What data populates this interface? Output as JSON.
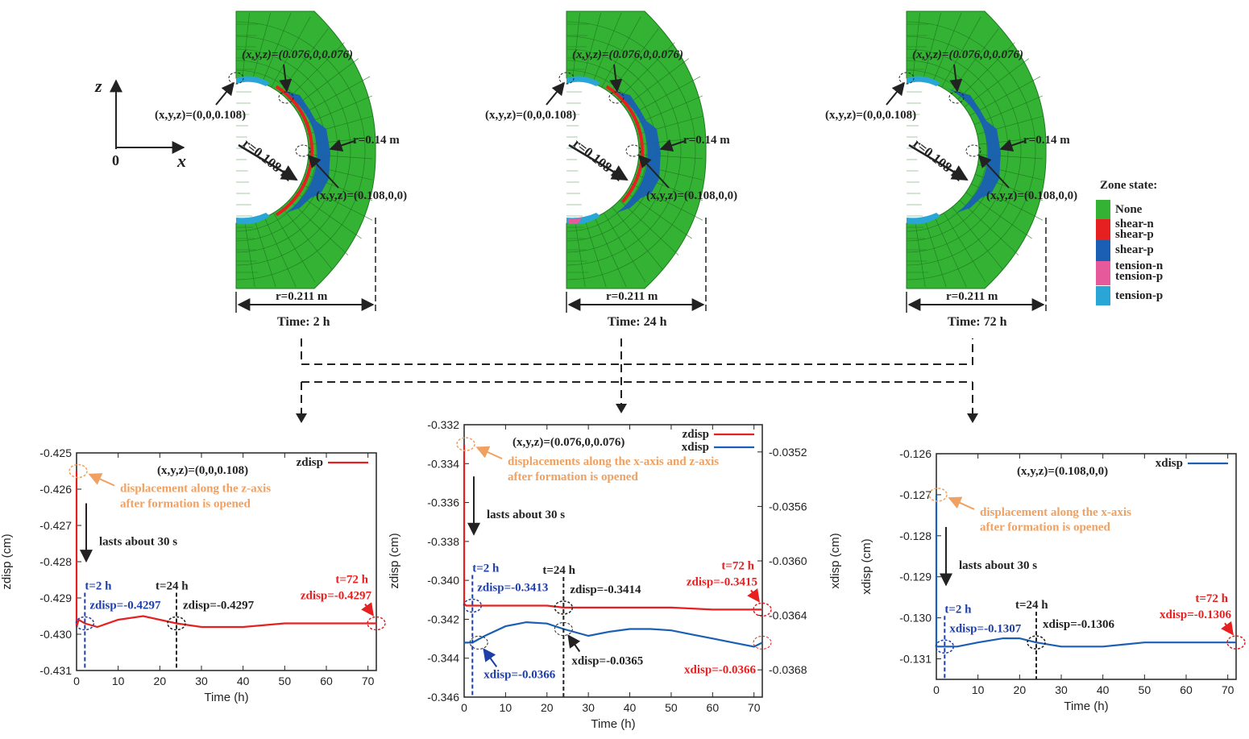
{
  "colors": {
    "green": "#33b233",
    "green_dark": "#1f7a1f",
    "red": "#e62020",
    "blue": "#1a5fb4",
    "light_blue": "#2aa6d6",
    "pink": "#e65a9c",
    "orange": "#f0a060",
    "annotation_blue": "#1f3fa8"
  },
  "axes_icon": {
    "z": "z",
    "x": "x",
    "origin": "0"
  },
  "legend": {
    "title": "Zone state:",
    "items": [
      {
        "label": "None",
        "color": "#33b233"
      },
      {
        "label": "shear-n\nshear-p",
        "color": "#e62020"
      },
      {
        "label": "shear-p",
        "color": "#1a5fb4"
      },
      {
        "label": "tension-n\ntension-p",
        "color": "#e65a9c"
      },
      {
        "label": "tension-p",
        "color": "#2aa6d6"
      }
    ]
  },
  "models": [
    {
      "time_label": "Time: 2 h",
      "p_top": "(x,y,z)=(0.076,0,0.076)",
      "p_left": "(x,y,z)=(0,0,0.108)",
      "p_mid": "(x,y,z)=(0.108,0,0)",
      "r_inner": "r=0.108 m",
      "r_shear": "r=0.14 m",
      "r_outer": "r=0.211 m"
    },
    {
      "time_label": "Time: 24 h",
      "p_top": "(x,y,z)=(0.076,0,0.076)",
      "p_left": "(x,y,z)=(0,0,0.108)",
      "p_mid": "(x,y,z)=(0.108,0,0)",
      "r_inner": "r=0.108 m",
      "r_shear": "r=0.14 m",
      "r_outer": "r=0.211 m"
    },
    {
      "time_label": "Time: 72 h",
      "p_top": "(x,y,z)=(0.076,0,0.076)",
      "p_left": "(x,y,z)=(0,0,0.108)",
      "p_mid": "(x,y,z)=(0.108,0,0)",
      "r_inner": "r=0.108 m",
      "r_shear": "r=0.14 m",
      "r_outer": "r=0.211 m"
    }
  ],
  "chart_data": [
    {
      "type": "line",
      "xlabel": "Time (h)",
      "ylabel": "zdisp (cm)",
      "xlim": [
        0,
        72
      ],
      "ylim": [
        -0.431,
        -0.425
      ],
      "xticks": [
        "0",
        "10",
        "20",
        "30",
        "40",
        "50",
        "60",
        "70"
      ],
      "yticks": [
        "-0.425",
        "-0.426",
        "-0.427",
        "-0.428",
        "-0.429",
        "-0.430",
        "-0.431"
      ],
      "point_label": "(x,y,z)=(0,0,0.108)",
      "series": [
        {
          "name": "zdisp",
          "color": "#e62020",
          "x": [
            0,
            0.008,
            0.5,
            2,
            5,
            10,
            16,
            20,
            24,
            30,
            40,
            50,
            60,
            70,
            72
          ],
          "y": [
            -0.4255,
            -0.4298,
            -0.4296,
            -0.4297,
            -0.4298,
            -0.4296,
            -0.4295,
            -0.4296,
            -0.4297,
            -0.4298,
            -0.4298,
            -0.4297,
            -0.4297,
            -0.4297,
            -0.4297
          ]
        }
      ],
      "annotations": {
        "origin_note": "displacement along the z-axis\nafter formation is opened",
        "duration": "lasts about 30 s",
        "t1": "t=2 h",
        "v1": "zdisp=-0.4297",
        "t2": "t=24 h",
        "v2": "zdisp=-0.4297",
        "t3": "t=72 h",
        "v3": "zdisp=-0.4297"
      }
    },
    {
      "type": "line",
      "xlabel": "Time (h)",
      "ylabel": "zdisp (cm)",
      "y2label": "xdisp (cm)",
      "xlim": [
        0,
        72
      ],
      "ylim": [
        -0.346,
        -0.332
      ],
      "y2lim": [
        -0.037,
        -0.035
      ],
      "xticks": [
        "0",
        "10",
        "20",
        "30",
        "40",
        "50",
        "60",
        "70"
      ],
      "yticks": [
        "-0.332",
        "-0.334",
        "-0.336",
        "-0.338",
        "-0.340",
        "-0.342",
        "-0.344",
        "-0.346"
      ],
      "y2ticks": [
        "-0.0352",
        "-0.0356",
        "-0.0360",
        "-0.0364",
        "-0.0368"
      ],
      "point_label": "(x,y,z)=(0.076,0,0.076)",
      "series": [
        {
          "name": "zdisp",
          "color": "#e62020",
          "axis": "left",
          "x": [
            0,
            0.008,
            0.5,
            2,
            10,
            20,
            24,
            30,
            40,
            50,
            60,
            70,
            72
          ],
          "y": [
            -0.333,
            -0.3412,
            -0.3413,
            -0.3413,
            -0.3413,
            -0.3413,
            -0.3414,
            -0.3414,
            -0.3414,
            -0.3414,
            -0.3415,
            -0.3415,
            -0.3415
          ]
        },
        {
          "name": "xdisp",
          "color": "#1a5fb4",
          "axis": "right",
          "x": [
            0,
            2,
            5,
            10,
            15,
            20,
            24,
            30,
            35,
            40,
            45,
            50,
            55,
            60,
            65,
            70,
            72
          ],
          "y": [
            -0.0366,
            -0.0366,
            -0.03655,
            -0.03648,
            -0.03645,
            -0.03646,
            -0.0365,
            -0.03655,
            -0.03652,
            -0.0365,
            -0.0365,
            -0.03651,
            -0.03654,
            -0.03657,
            -0.0366,
            -0.03663,
            -0.0366
          ]
        }
      ],
      "annotations": {
        "origin_note": "displacements along the x-axis and z-axis\nafter formation is opened",
        "duration": "lasts about 30 s",
        "t1": "t=2 h",
        "v1": "zdisp=-0.3413",
        "v1b": "xdisp=-0.0366",
        "t2": "t=24 h",
        "v2": "zdisp=-0.3414",
        "v2b": "xdisp=-0.0365",
        "t3": "t=72 h",
        "v3": "zdisp=-0.3415",
        "v3b": "xdisp=-0.0366"
      }
    },
    {
      "type": "line",
      "xlabel": "Time (h)",
      "ylabel": "xdisp (cm)",
      "xlim": [
        0,
        72
      ],
      "ylim": [
        -0.1315,
        -0.126
      ],
      "xticks": [
        "0",
        "10",
        "20",
        "30",
        "40",
        "50",
        "60",
        "70"
      ],
      "yticks": [
        "-0.126",
        "-0.127",
        "-0.128",
        "-0.129",
        "-0.130",
        "-0.131"
      ],
      "point_label": "(x,y,z)=(0.108,0,0)",
      "series": [
        {
          "name": "xdisp",
          "color": "#1a5fb4",
          "x": [
            0,
            0.008,
            0.5,
            2,
            5,
            10,
            16,
            20,
            24,
            30,
            40,
            50,
            60,
            70,
            72
          ],
          "y": [
            -0.127,
            -0.1307,
            -0.1307,
            -0.1307,
            -0.1307,
            -0.1306,
            -0.1305,
            -0.1305,
            -0.1306,
            -0.1307,
            -0.1307,
            -0.1306,
            -0.1306,
            -0.1306,
            -0.1306
          ]
        }
      ],
      "annotations": {
        "origin_note": "displacement along the x-axis\nafter formation is opened",
        "duration": "lasts about 30 s",
        "t1": "t=2 h",
        "v1": "xdisp=-0.1307",
        "t2": "t=24 h",
        "v2": "xdisp=-0.1306",
        "t3": "t=72 h",
        "v3": "xdisp=-0.1306"
      }
    }
  ]
}
